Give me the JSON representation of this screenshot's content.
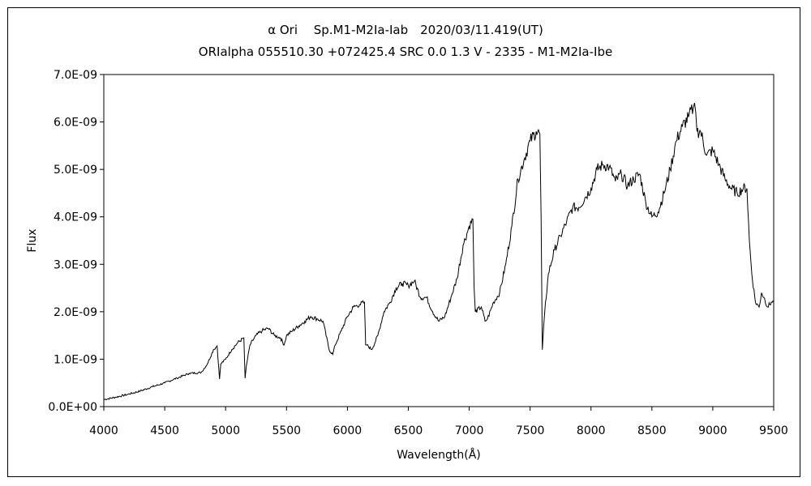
{
  "chart_data": {
    "type": "line",
    "title": "α Ori　 Sp.M1-M2Ia-Iab　2020/03/11.419(UT)",
    "subtitle": "ORIalpha 055510.30 +072425.4 SRC 0.0 1.3 V - 2335 - M1-M2Ia-Ibe",
    "xlabel": "Wavelength(Å)",
    "ylabel": "Flux",
    "xlim": [
      4000,
      9500
    ],
    "ylim": [
      0,
      7e-09
    ],
    "x_ticks": [
      "4000",
      "4500",
      "5000",
      "5500",
      "6000",
      "6500",
      "7000",
      "7500",
      "8000",
      "8500",
      "9000",
      "9500"
    ],
    "y_ticks": [
      "0.0E+00",
      "1.0E-09",
      "2.0E-09",
      "3.0E-09",
      "4.0E-09",
      "5.0E-09",
      "6.0E-09",
      "7.0E-09"
    ],
    "grid": false,
    "legend": "none",
    "line_color": "#000000",
    "series": [
      {
        "x": [
          4000,
          4100,
          4200,
          4300,
          4400,
          4500,
          4600,
          4700,
          4800,
          4850,
          4900,
          4930,
          4950,
          4960,
          5000,
          5050,
          5100,
          5150,
          5160,
          5170,
          5180,
          5200,
          5250,
          5300,
          5350,
          5400,
          5450,
          5480,
          5500,
          5550,
          5600,
          5650,
          5700,
          5750,
          5800,
          5850,
          5880,
          5900,
          5950,
          6000,
          6050,
          6100,
          6140,
          6150,
          6160,
          6200,
          6250,
          6300,
          6350,
          6400,
          6450,
          6500,
          6550,
          6600,
          6650,
          6700,
          6750,
          6800,
          6850,
          6900,
          6950,
          7000,
          7030,
          7040,
          7050,
          7100,
          7130,
          7150,
          7200,
          7250,
          7300,
          7350,
          7400,
          7450,
          7500,
          7550,
          7580,
          7590,
          7600,
          7620,
          7650,
          7700,
          7750,
          7800,
          7850,
          7900,
          7950,
          8000,
          8050,
          8100,
          8150,
          8200,
          8250,
          8300,
          8350,
          8400,
          8450,
          8500,
          8550,
          8600,
          8650,
          8700,
          8750,
          8800,
          8840,
          8850,
          8860,
          8870,
          8900,
          8950,
          9000,
          9050,
          9100,
          9150,
          9200,
          9250,
          9280,
          9300,
          9320,
          9350,
          9380,
          9400,
          9420,
          9450,
          9480,
          9500
        ],
        "y": [
          1.5e-10,
          2e-10,
          2.6e-10,
          3.3e-10,
          4.2e-10,
          5e-10,
          6e-10,
          7e-10,
          7.2e-10,
          9e-10,
          1.2e-09,
          1.28e-09,
          5.8e-10,
          9e-10,
          1e-09,
          1.2e-09,
          1.35e-09,
          1.45e-09,
          6e-10,
          8.5e-10,
          1e-09,
          1.3e-09,
          1.5e-09,
          1.6e-09,
          1.65e-09,
          1.5e-09,
          1.45e-09,
          1.3e-09,
          1.5e-09,
          1.6e-09,
          1.7e-09,
          1.8e-09,
          1.9e-09,
          1.85e-09,
          1.8e-09,
          1.2e-09,
          1.1e-09,
          1.3e-09,
          1.6e-09,
          1.9e-09,
          2.1e-09,
          2.15e-09,
          2.2e-09,
          1.3e-09,
          1.3e-09,
          1.2e-09,
          1.5e-09,
          2e-09,
          2.2e-09,
          2.5e-09,
          2.6e-09,
          2.55e-09,
          2.65e-09,
          2.3e-09,
          2.3e-09,
          2e-09,
          1.8e-09,
          1.9e-09,
          2.3e-09,
          2.7e-09,
          3.4e-09,
          3.8e-09,
          3.95e-09,
          2.5e-09,
          2e-09,
          2.1e-09,
          1.8e-09,
          1.85e-09,
          2.2e-09,
          2.4e-09,
          3e-09,
          3.8e-09,
          4.8e-09,
          5.2e-09,
          5.6e-09,
          5.8e-09,
          5.75e-09,
          4e-09,
          1.2e-09,
          2e-09,
          2.8e-09,
          3.3e-09,
          3.6e-09,
          3.9e-09,
          4.2e-09,
          4.2e-09,
          4.4e-09,
          4.6e-09,
          5e-09,
          5.1e-09,
          5.05e-09,
          4.75e-09,
          4.9e-09,
          4.65e-09,
          4.8e-09,
          4.9e-09,
          4.3e-09,
          4e-09,
          4.1e-09,
          4.5e-09,
          5e-09,
          5.6e-09,
          5.9e-09,
          6.1e-09,
          6.3e-09,
          6.4e-09,
          6.2e-09,
          5.8e-09,
          5.8e-09,
          5.3e-09,
          5.4e-09,
          5.1e-09,
          4.8e-09,
          4.6e-09,
          4.5e-09,
          4.6e-09,
          4.6e-09,
          3.5e-09,
          2.8e-09,
          2.2e-09,
          2.1e-09,
          2.4e-09,
          2.3e-09,
          2.1e-09,
          2.2e-09,
          2.2e-09
        ]
      }
    ]
  }
}
